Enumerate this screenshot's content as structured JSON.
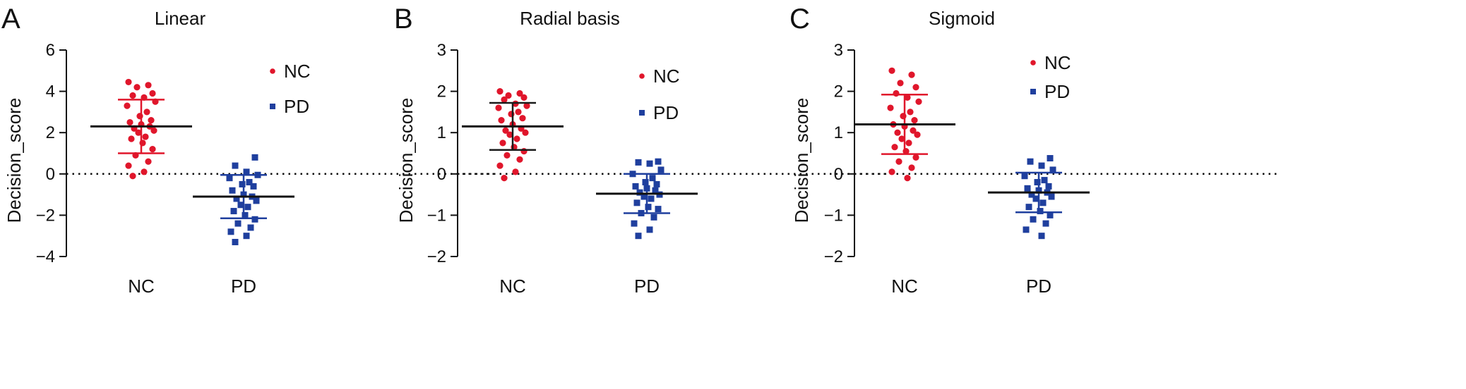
{
  "chart_data": [
    {
      "type": "scatter",
      "panel_label": "A",
      "title": "Linear",
      "ylabel": "Decision_score",
      "xlabel": "",
      "categories": [
        "NC",
        "PD"
      ],
      "ylim": [
        -4,
        6
      ],
      "yticks": [
        -4,
        -2,
        0,
        2,
        4,
        6
      ],
      "ytick_labels": [
        "−4",
        "−2",
        "0",
        "2",
        "4",
        "6"
      ],
      "reference_line": 0,
      "legend": {
        "placement": "top-right",
        "entries": [
          "NC",
          "PD"
        ]
      },
      "series": [
        {
          "name": "NC",
          "marker": "circle",
          "color": "#e0162b",
          "summary_color": "#e0162b",
          "mean": 2.3,
          "sd_upper": 3.6,
          "sd_lower": 1.0,
          "values": [
            4.45,
            4.3,
            4.2,
            3.9,
            3.8,
            3.7,
            3.5,
            3.3,
            3.0,
            2.8,
            2.6,
            2.5,
            2.4,
            2.3,
            2.2,
            2.1,
            2.0,
            1.8,
            1.7,
            1.5,
            1.2,
            0.9,
            0.6,
            0.4,
            0.1,
            -0.1
          ]
        },
        {
          "name": "PD",
          "marker": "square",
          "color": "#1f3f9e",
          "summary_color": "#1f3f9e",
          "mean": -1.1,
          "sd_upper": -0.05,
          "sd_lower": -2.15,
          "values": [
            0.8,
            0.4,
            0.1,
            -0.05,
            -0.2,
            -0.4,
            -0.5,
            -0.6,
            -0.8,
            -1.0,
            -1.1,
            -1.2,
            -1.3,
            -1.5,
            -1.6,
            -1.8,
            -2.0,
            -2.2,
            -2.4,
            -2.6,
            -2.8,
            -3.0,
            -3.3
          ]
        }
      ]
    },
    {
      "type": "scatter",
      "panel_label": "B",
      "title": "Radial basis",
      "ylabel": "Decision_score",
      "xlabel": "",
      "categories": [
        "NC",
        "PD"
      ],
      "ylim": [
        -2,
        3
      ],
      "yticks": [
        -2,
        -1,
        0,
        1,
        2,
        3
      ],
      "ytick_labels": [
        "−2",
        "−1",
        "0",
        "1",
        "2",
        "3"
      ],
      "reference_line": 0,
      "legend": {
        "placement": "top-right",
        "entries": [
          "NC",
          "PD"
        ]
      },
      "series": [
        {
          "name": "NC",
          "marker": "circle",
          "color": "#e0162b",
          "summary_color": "#1a1a1a",
          "mean": 1.15,
          "sd_upper": 1.72,
          "sd_lower": 0.58,
          "values": [
            2.0,
            1.95,
            1.9,
            1.85,
            1.8,
            1.7,
            1.65,
            1.6,
            1.5,
            1.45,
            1.35,
            1.3,
            1.2,
            1.1,
            1.05,
            1.0,
            0.95,
            0.85,
            0.75,
            0.65,
            0.55,
            0.45,
            0.35,
            0.2,
            0.05,
            -0.1
          ]
        },
        {
          "name": "PD",
          "marker": "square",
          "color": "#1f3f9e",
          "summary_color": "#1f3f9e",
          "mean": -0.48,
          "sd_upper": 0.0,
          "sd_lower": -0.95,
          "values": [
            0.3,
            0.28,
            0.25,
            0.1,
            0.0,
            -0.1,
            -0.2,
            -0.25,
            -0.3,
            -0.35,
            -0.4,
            -0.45,
            -0.5,
            -0.55,
            -0.6,
            -0.7,
            -0.8,
            -0.85,
            -0.95,
            -1.05,
            -1.2,
            -1.35,
            -1.5
          ]
        }
      ]
    },
    {
      "type": "scatter",
      "panel_label": "C",
      "title": "Sigmoid",
      "ylabel": "Decision_score",
      "xlabel": "",
      "categories": [
        "NC",
        "PD"
      ],
      "ylim": [
        -2,
        3
      ],
      "yticks": [
        -2,
        -1,
        0,
        1,
        2,
        3
      ],
      "ytick_labels": [
        "−2",
        "−1",
        "0",
        "1",
        "2",
        "3"
      ],
      "reference_line": 0,
      "legend": {
        "placement": "top-right",
        "entries": [
          "NC",
          "PD"
        ]
      },
      "series": [
        {
          "name": "NC",
          "marker": "circle",
          "color": "#e0162b",
          "summary_color": "#e0162b",
          "mean": 1.2,
          "sd_upper": 1.92,
          "sd_lower": 0.48,
          "values": [
            2.5,
            2.4,
            2.2,
            2.1,
            1.95,
            1.85,
            1.75,
            1.6,
            1.5,
            1.4,
            1.3,
            1.2,
            1.15,
            1.05,
            1.0,
            0.95,
            0.85,
            0.75,
            0.65,
            0.55,
            0.4,
            0.3,
            0.15,
            0.05,
            -0.1
          ]
        },
        {
          "name": "PD",
          "marker": "square",
          "color": "#1f3f9e",
          "summary_color": "#1f3f9e",
          "mean": -0.45,
          "sd_upper": 0.03,
          "sd_lower": -0.93,
          "values": [
            0.38,
            0.3,
            0.2,
            0.1,
            -0.05,
            -0.15,
            -0.2,
            -0.3,
            -0.35,
            -0.4,
            -0.45,
            -0.5,
            -0.55,
            -0.6,
            -0.7,
            -0.8,
            -0.9,
            -1.0,
            -1.1,
            -1.2,
            -1.35,
            -1.5
          ]
        }
      ]
    }
  ]
}
